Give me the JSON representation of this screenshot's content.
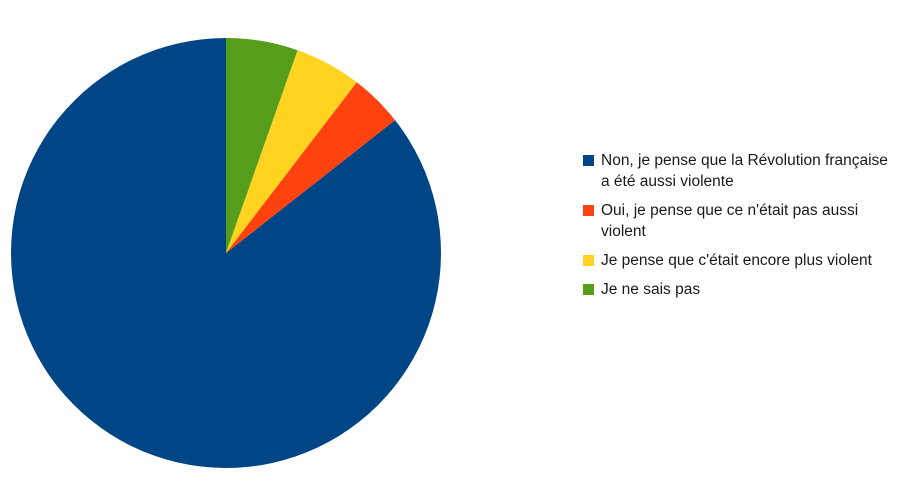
{
  "chart_data": {
    "type": "pie",
    "title": "",
    "slices": [
      {
        "label": "Non, je pense que la Révolution française a été aussi violente",
        "value": 85.6,
        "color": "#004586"
      },
      {
        "label": "Oui, je pense que ce n'était pas aussi violent",
        "value": 4.0,
        "color": "#ff420e"
      },
      {
        "label": "Je pense que c'était encore plus violent",
        "value": 5.0,
        "color": "#ffd320"
      },
      {
        "label": "Je ne sais pas",
        "value": 5.4,
        "color": "#579d1c"
      }
    ],
    "start_angle_deg": 0,
    "direction": "counterclockwise",
    "legend_position": "right"
  }
}
